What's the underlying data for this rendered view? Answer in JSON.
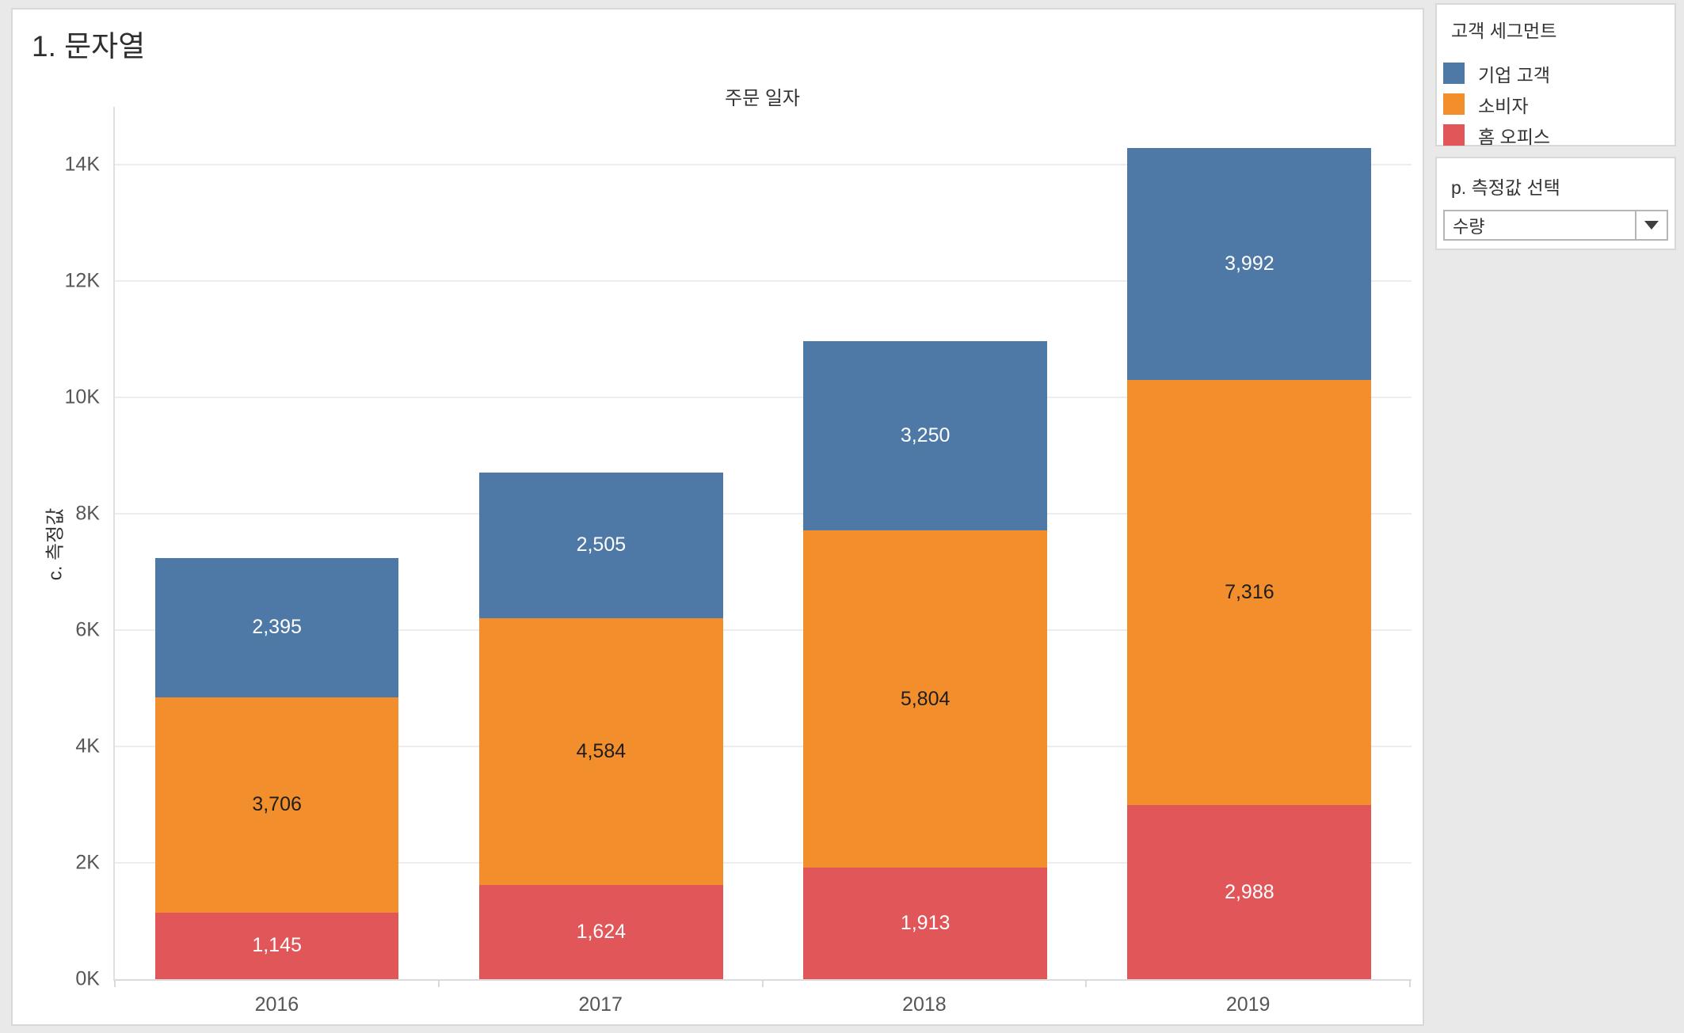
{
  "page": {
    "title": "1. 문자열"
  },
  "chart_data": {
    "type": "bar",
    "stacked": true,
    "title": "주문 일자",
    "xlabel": "",
    "ylabel": "c. 측정값",
    "legend_title": "고객 세그먼트",
    "legend_position": "top-right",
    "categories": [
      "2016",
      "2017",
      "2018",
      "2019"
    ],
    "series": [
      {
        "name": "기업 고객",
        "color": "#4e79a7",
        "label_color": "#ffffff",
        "values": [
          2395,
          2505,
          3250,
          3992
        ]
      },
      {
        "name": "소비자",
        "color": "#f28e2b",
        "label_color": "#1e1e1e",
        "values": [
          3706,
          4584,
          5804,
          7316
        ]
      },
      {
        "name": "홈 오피스",
        "color": "#e15759",
        "label_color": "#ffffff",
        "values": [
          1145,
          1624,
          1913,
          2988
        ]
      }
    ],
    "ylim": [
      0,
      15000
    ],
    "ytick_values": [
      0,
      2000,
      4000,
      6000,
      8000,
      10000,
      12000,
      14000
    ],
    "ytick_labels": [
      "0K",
      "2K",
      "4K",
      "6K",
      "8K",
      "10K",
      "12K",
      "14K"
    ],
    "grid": true
  },
  "parameter": {
    "title": "p. 측정값 선택",
    "selected": "수량",
    "dropdown_icon": "caret-down"
  }
}
